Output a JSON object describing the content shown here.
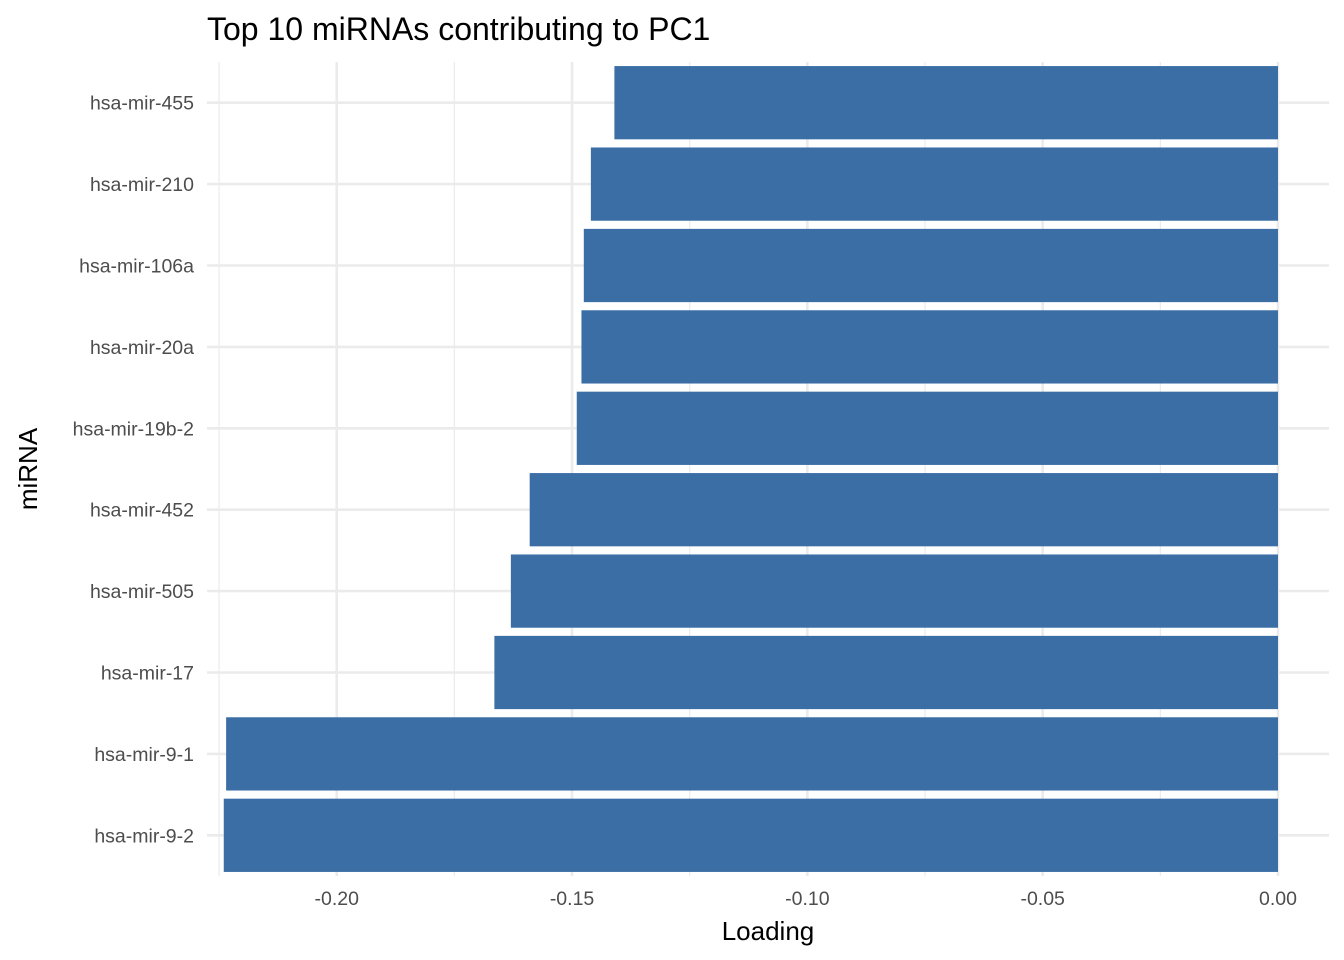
{
  "chart_data": {
    "type": "bar",
    "orientation": "horizontal",
    "title": "Top 10 miRNAs contributing to PC1",
    "xlabel": "Loading",
    "ylabel": "miRNA",
    "categories": [
      "hsa-mir-455",
      "hsa-mir-210",
      "hsa-mir-106a",
      "hsa-mir-20a",
      "hsa-mir-19b-2",
      "hsa-mir-452",
      "hsa-mir-505",
      "hsa-mir-17",
      "hsa-mir-9-1",
      "hsa-mir-9-2"
    ],
    "values": [
      -0.141,
      -0.146,
      -0.1475,
      -0.148,
      -0.149,
      -0.159,
      -0.163,
      -0.1665,
      -0.2235,
      -0.224
    ],
    "xlim": [
      -0.2265,
      0.0
    ],
    "xticks": [
      -0.2,
      -0.15,
      -0.1,
      -0.05,
      0.0
    ],
    "xtick_labels": [
      "-0.20",
      "-0.15",
      "-0.10",
      "-0.05",
      "0.00"
    ],
    "bar_color": "#3a6ea5",
    "grid": true,
    "theme": "minimal"
  }
}
